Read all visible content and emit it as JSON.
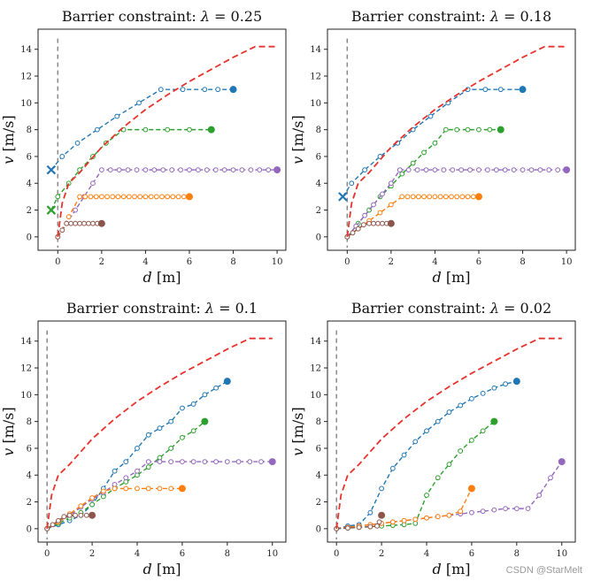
{
  "watermark": "CSDN @StarMelt",
  "colors": {
    "frontier": "#e8322c",
    "boundary": "#888888",
    "blue": "#1f77b4",
    "orange": "#ff7f0e",
    "green": "#2ca02c",
    "purple": "#9467bd",
    "brown": "#8c564b"
  },
  "chart_data": [
    {
      "type": "line",
      "title_prefix": "Barrier constraint: ",
      "title_symbol": "λ",
      "title_value": "= 0.25",
      "xlabel_symbol": "d",
      "xlabel_unit": " [m]",
      "ylabel_symbol": "v",
      "ylabel_unit": " [m/s]",
      "xlim": [
        -0.9,
        10.4
      ],
      "ylim": [
        -1.0,
        15.5
      ],
      "xticks": [
        0,
        2,
        4,
        6,
        8,
        10
      ],
      "yticks": [
        0,
        2,
        4,
        6,
        8,
        10,
        12,
        14
      ],
      "boundary_x": 0,
      "frontier": {
        "x": [
          0,
          0.2,
          0.5,
          1,
          2,
          3,
          4,
          5,
          6,
          7,
          8,
          9,
          10
        ],
        "y": [
          0,
          2.5,
          4.0,
          4.8,
          6.7,
          8.2,
          9.5,
          10.6,
          11.6,
          12.5,
          13.4,
          14.2,
          14.2
        ]
      },
      "series": [
        {
          "color": "blue",
          "x": [
            -0.3,
            0.2,
            0.9,
            1.8,
            2.7,
            3.7,
            4.7,
            5.7,
            6.7,
            7.3,
            8.0
          ],
          "y": [
            5,
            6,
            7,
            8,
            9,
            10,
            11,
            11,
            11,
            11,
            11
          ],
          "start_marker": "x"
        },
        {
          "color": "green",
          "x": [
            -0.3,
            0.0,
            0.5,
            1.0,
            1.6,
            2.2,
            3.0,
            4.0,
            5.0,
            6.0,
            7.0
          ],
          "y": [
            2,
            3,
            4,
            5,
            6,
            7,
            8,
            8,
            8,
            8,
            8
          ],
          "start_marker": "x"
        },
        {
          "color": "purple",
          "x": [
            0,
            0.4,
            0.8,
            1.2,
            1.6,
            2.0,
            2.4,
            2.8,
            3.2,
            3.6,
            4.0,
            4.4,
            4.8,
            5.2,
            5.6,
            6.0,
            6.4,
            6.8,
            7.2,
            7.6,
            8.0,
            8.4,
            8.8,
            9.2,
            9.6,
            10.0
          ],
          "y": [
            0,
            1,
            2,
            3,
            4,
            5,
            5,
            5,
            5,
            5,
            5,
            5,
            5,
            5,
            5,
            5,
            5,
            5,
            5,
            5,
            5,
            5,
            5,
            5,
            5,
            5
          ],
          "start_marker": "none"
        },
        {
          "color": "orange",
          "x": [
            0,
            0.5,
            1.0,
            1.25,
            1.5,
            1.75,
            2.0,
            2.25,
            2.5,
            2.75,
            3.0,
            3.25,
            3.5,
            3.75,
            4.0,
            4.25,
            4.5,
            4.75,
            5.0,
            5.25,
            5.5,
            5.75,
            6.0
          ],
          "y": [
            0,
            1.5,
            3,
            3,
            3,
            3,
            3,
            3,
            3,
            3,
            3,
            3,
            3,
            3,
            3,
            3,
            3,
            3,
            3,
            3,
            3,
            3,
            3
          ],
          "start_marker": "none"
        },
        {
          "color": "brown",
          "x": [
            0,
            0.2,
            0.4,
            0.6,
            0.8,
            1.0,
            1.2,
            1.4,
            1.6,
            1.8,
            2.0
          ],
          "y": [
            0,
            0.5,
            1,
            1,
            1,
            1,
            1,
            1,
            1,
            1,
            1
          ],
          "start_marker": "none"
        }
      ]
    },
    {
      "type": "line",
      "title_prefix": "Barrier constraint: ",
      "title_symbol": "λ",
      "title_value": "= 0.18",
      "xlabel_symbol": "d",
      "xlabel_unit": " [m]",
      "ylabel_symbol": "v",
      "ylabel_unit": " [m/s]",
      "xlim": [
        -0.9,
        10.4
      ],
      "ylim": [
        -1.0,
        15.5
      ],
      "xticks": [
        0,
        2,
        4,
        6,
        8,
        10
      ],
      "yticks": [
        0,
        2,
        4,
        6,
        8,
        10,
        12,
        14
      ],
      "boundary_x": 0,
      "frontier": {
        "x": [
          0,
          0.2,
          0.5,
          1,
          2,
          3,
          4,
          5,
          6,
          7,
          8,
          9,
          10
        ],
        "y": [
          0,
          2.5,
          4.0,
          4.8,
          6.7,
          8.2,
          9.5,
          10.6,
          11.6,
          12.5,
          13.4,
          14.2,
          14.2
        ]
      },
      "series": [
        {
          "color": "blue",
          "x": [
            -0.2,
            0.2,
            0.8,
            1.5,
            2.3,
            3.0,
            3.8,
            4.6,
            5.5,
            6.3,
            7.0,
            8.0
          ],
          "y": [
            3,
            4,
            5,
            6,
            7,
            8,
            9,
            10,
            11,
            11,
            11,
            11
          ],
          "start_marker": "x"
        },
        {
          "color": "green",
          "x": [
            0,
            0.5,
            1.0,
            1.5,
            2.0,
            2.5,
            3.0,
            3.5,
            4.0,
            4.5,
            5.0,
            5.5,
            6.0,
            6.5,
            7.0
          ],
          "y": [
            0,
            1,
            2,
            3,
            3.8,
            4.7,
            5.5,
            6.3,
            7.0,
            8,
            8,
            8,
            8,
            8,
            8
          ],
          "start_marker": "none"
        },
        {
          "color": "purple",
          "x": [
            0,
            0.4,
            0.8,
            1.2,
            1.6,
            2.0,
            2.4,
            2.8,
            3.2,
            3.6,
            4.0,
            4.4,
            4.8,
            5.2,
            5.6,
            6.0,
            6.4,
            6.8,
            7.2,
            7.6,
            8.0,
            8.4,
            8.8,
            9.2,
            9.6,
            10.0
          ],
          "y": [
            0,
            0.8,
            1.6,
            2.4,
            3.2,
            4.0,
            5,
            5,
            5,
            5,
            5,
            5,
            5,
            5,
            5,
            5,
            5,
            5,
            5,
            5,
            5,
            5,
            5,
            5,
            5,
            5
          ],
          "start_marker": "none"
        },
        {
          "color": "orange",
          "x": [
            0,
            0.5,
            1.0,
            1.5,
            2.0,
            2.5,
            2.75,
            3.0,
            3.25,
            3.5,
            3.75,
            4.0,
            4.25,
            4.5,
            4.75,
            5.0,
            5.25,
            5.5,
            5.75,
            6.0
          ],
          "y": [
            0,
            0.6,
            1.2,
            1.8,
            2.4,
            3,
            3,
            3,
            3,
            3,
            3,
            3,
            3,
            3,
            3,
            3,
            3,
            3,
            3,
            3
          ],
          "start_marker": "none"
        },
        {
          "color": "brown",
          "x": [
            0,
            0.25,
            0.5,
            0.75,
            1.0,
            1.2,
            1.4,
            1.6,
            1.8,
            2.0
          ],
          "y": [
            0,
            0.3,
            0.6,
            0.9,
            1,
            1,
            1,
            1,
            1,
            1
          ],
          "start_marker": "none"
        }
      ]
    },
    {
      "type": "line",
      "title_prefix": "Barrier constraint: ",
      "title_symbol": "λ",
      "title_value": "= 0.1",
      "xlabel_symbol": "d",
      "xlabel_unit": " [m]",
      "ylabel_symbol": "v",
      "ylabel_unit": " [m/s]",
      "xlim": [
        -0.4,
        10.6
      ],
      "ylim": [
        -1.0,
        15.5
      ],
      "xticks": [
        0,
        2,
        4,
        6,
        8,
        10
      ],
      "yticks": [
        0,
        2,
        4,
        6,
        8,
        10,
        12,
        14
      ],
      "boundary_x": 0,
      "frontier": {
        "x": [
          0,
          0.2,
          0.5,
          1,
          2,
          3,
          4,
          5,
          6,
          7,
          8,
          9,
          10
        ],
        "y": [
          0,
          2.5,
          4.0,
          4.8,
          6.7,
          8.2,
          9.5,
          10.6,
          11.6,
          12.5,
          13.4,
          14.2,
          14.2
        ]
      },
      "series": [
        {
          "color": "blue",
          "x": [
            0,
            0.5,
            1.0,
            1.5,
            2.0,
            2.5,
            3.0,
            3.5,
            4.0,
            4.5,
            5.0,
            5.5,
            6.0,
            6.5,
            7.0,
            7.5,
            8.0
          ],
          "y": [
            0,
            0.3,
            0.6,
            1.0,
            1.8,
            3.0,
            4.3,
            5.0,
            6.0,
            7.0,
            7.5,
            8.0,
            9.0,
            9.3,
            10.0,
            10.5,
            11.0
          ],
          "start_marker": "none"
        },
        {
          "color": "green",
          "x": [
            0,
            0.5,
            1.0,
            1.5,
            2.0,
            2.5,
            3.0,
            3.5,
            4.0,
            4.5,
            5.0,
            5.5,
            6.0,
            6.5,
            7.0
          ],
          "y": [
            0,
            0.4,
            0.8,
            1.2,
            1.8,
            2.4,
            3.0,
            3.5,
            4.0,
            4.6,
            5.3,
            6.0,
            6.8,
            7.3,
            8.0
          ],
          "start_marker": "none"
        },
        {
          "color": "purple",
          "x": [
            0,
            0.5,
            1.0,
            1.5,
            2.0,
            2.5,
            3.0,
            3.5,
            4.0,
            4.5,
            5.0,
            5.5,
            6.0,
            6.5,
            7.0,
            7.5,
            8.0,
            8.5,
            9.0,
            9.5,
            10.0
          ],
          "y": [
            0,
            0.5,
            1.0,
            1.6,
            2.2,
            2.7,
            3.3,
            3.8,
            4.3,
            5,
            5,
            5,
            5,
            5,
            5,
            5,
            5,
            5,
            5,
            5,
            5
          ],
          "start_marker": "none"
        },
        {
          "color": "orange",
          "x": [
            0,
            0.5,
            1.0,
            1.5,
            2.0,
            2.5,
            3.0,
            3.5,
            4.0,
            4.5,
            5.0,
            5.5,
            6.0
          ],
          "y": [
            0,
            0.5,
            1.1,
            1.7,
            2.3,
            2.8,
            3,
            3,
            3,
            3,
            3,
            3,
            3
          ],
          "start_marker": "none"
        },
        {
          "color": "brown",
          "x": [
            0,
            0.25,
            0.5,
            0.75,
            1.0,
            1.25,
            1.5,
            1.75,
            2.0
          ],
          "y": [
            0,
            0.3,
            0.6,
            0.9,
            1,
            1,
            1,
            1,
            1
          ],
          "start_marker": "none"
        }
      ]
    },
    {
      "type": "line",
      "title_prefix": "Barrier constraint: ",
      "title_symbol": "λ",
      "title_value": "= 0.02",
      "xlabel_symbol": "d",
      "xlabel_unit": " [m]",
      "ylabel_symbol": "v",
      "ylabel_unit": " [m/s]",
      "xlim": [
        -0.4,
        10.6
      ],
      "ylim": [
        -1.0,
        15.5
      ],
      "xticks": [
        0,
        2,
        4,
        6,
        8,
        10
      ],
      "yticks": [
        0,
        2,
        4,
        6,
        8,
        10,
        12,
        14
      ],
      "boundary_x": 0,
      "frontier": {
        "x": [
          0,
          0.2,
          0.5,
          1,
          2,
          3,
          4,
          5,
          6,
          7,
          8,
          9,
          10
        ],
        "y": [
          0,
          2.5,
          4.0,
          4.8,
          6.7,
          8.2,
          9.5,
          10.6,
          11.6,
          12.5,
          13.4,
          14.2,
          14.2
        ]
      },
      "series": [
        {
          "color": "blue",
          "x": [
            0,
            0.5,
            1.0,
            1.5,
            2.0,
            2.5,
            3.0,
            3.5,
            4.0,
            4.5,
            5.0,
            5.5,
            6.0,
            6.5,
            7.0,
            7.5,
            8.0
          ],
          "y": [
            0,
            0.2,
            0.3,
            1.2,
            3.0,
            4.5,
            5.5,
            6.5,
            7.3,
            8.0,
            8.7,
            9.2,
            9.7,
            10.1,
            10.5,
            10.8,
            11.0
          ],
          "start_marker": "none"
        },
        {
          "color": "green",
          "x": [
            0,
            0.5,
            1.0,
            1.5,
            2.0,
            2.5,
            3.0,
            3.5,
            4.0,
            4.5,
            5.0,
            5.5,
            6.0,
            6.5,
            7.0
          ],
          "y": [
            0,
            0.05,
            0.1,
            0.15,
            0.2,
            0.25,
            0.3,
            0.4,
            2.5,
            3.8,
            4.8,
            5.8,
            6.6,
            7.3,
            8.0
          ],
          "start_marker": "none"
        },
        {
          "color": "purple",
          "x": [
            0,
            0.5,
            1.0,
            1.5,
            2.0,
            2.5,
            3.0,
            3.5,
            4.0,
            4.5,
            5.0,
            5.5,
            6.0,
            6.5,
            7.0,
            7.5,
            8.0,
            8.5,
            9.0,
            9.5,
            10.0
          ],
          "y": [
            0,
            0.1,
            0.2,
            0.3,
            0.4,
            0.5,
            0.6,
            0.7,
            0.8,
            0.9,
            1.0,
            1.1,
            1.2,
            1.3,
            1.4,
            1.5,
            1.5,
            1.5,
            2.5,
            3.8,
            5.0
          ],
          "start_marker": "none"
        },
        {
          "color": "orange",
          "x": [
            0,
            0.5,
            1.0,
            1.5,
            2.0,
            2.5,
            3.0,
            3.5,
            4.0,
            4.5,
            5.0,
            5.5,
            6.0
          ],
          "y": [
            0,
            0.1,
            0.2,
            0.3,
            0.4,
            0.5,
            0.6,
            0.7,
            0.8,
            0.9,
            1.0,
            1.3,
            3.0
          ],
          "start_marker": "none"
        },
        {
          "color": "brown",
          "x": [
            0,
            0.5,
            1.0,
            1.5,
            1.8,
            1.9,
            2.0
          ],
          "y": [
            0,
            0.05,
            0.1,
            0.15,
            0.2,
            0.5,
            1.0
          ],
          "start_marker": "none"
        }
      ]
    }
  ]
}
